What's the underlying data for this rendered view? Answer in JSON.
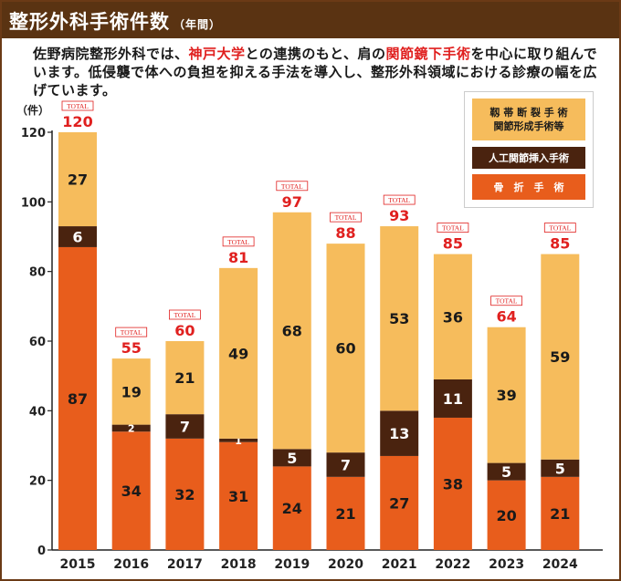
{
  "header": {
    "title": "整形外科手術件数",
    "subtitle": "（年間）"
  },
  "intro": {
    "text_1": "佐野病院整形外科では、",
    "highlight_1": "神戸大学",
    "text_2": "との連携のもと、肩の",
    "highlight_2": "関節鏡下手術",
    "text_3": "を中心に取り組んでいます。低侵襲で体への負担を抑える手法を導入し、整形外科領域における診療の幅を広げています。"
  },
  "legend": {
    "arthroscopic_line1": "靱 帯 断 裂 手 術",
    "arthroscopic_line2": "関節形成手術等",
    "joint_replacement": "人工関節挿入手術",
    "fracture": "骨　折　手　術"
  },
  "colors": {
    "arthroscopic": "#f6bc5c",
    "joint": "#4a230f",
    "fracture": "#e85d1c",
    "total": "#e0201f",
    "header": "#5a3312"
  },
  "chart_data": {
    "type": "bar",
    "stacked": true,
    "unit_label": "（件）",
    "total_tag": "TOTAL",
    "categories": [
      "2015",
      "2016",
      "2017",
      "2018",
      "2019",
      "2020",
      "2021",
      "2022",
      "2023",
      "2024"
    ],
    "series": [
      {
        "key": "fracture",
        "values": [
          87,
          34,
          32,
          31,
          24,
          21,
          27,
          38,
          20,
          21
        ]
      },
      {
        "key": "joint",
        "values": [
          6,
          2,
          7,
          1,
          5,
          7,
          13,
          11,
          5,
          5
        ]
      },
      {
        "key": "arthroscopic",
        "values": [
          27,
          19,
          21,
          49,
          68,
          60,
          53,
          36,
          39,
          59
        ]
      }
    ],
    "totals": [
      120,
      55,
      60,
      81,
      97,
      88,
      93,
      85,
      64,
      85
    ],
    "ylim": [
      0,
      120
    ],
    "yticks": [
      0,
      20,
      40,
      60,
      80,
      100,
      120
    ]
  }
}
